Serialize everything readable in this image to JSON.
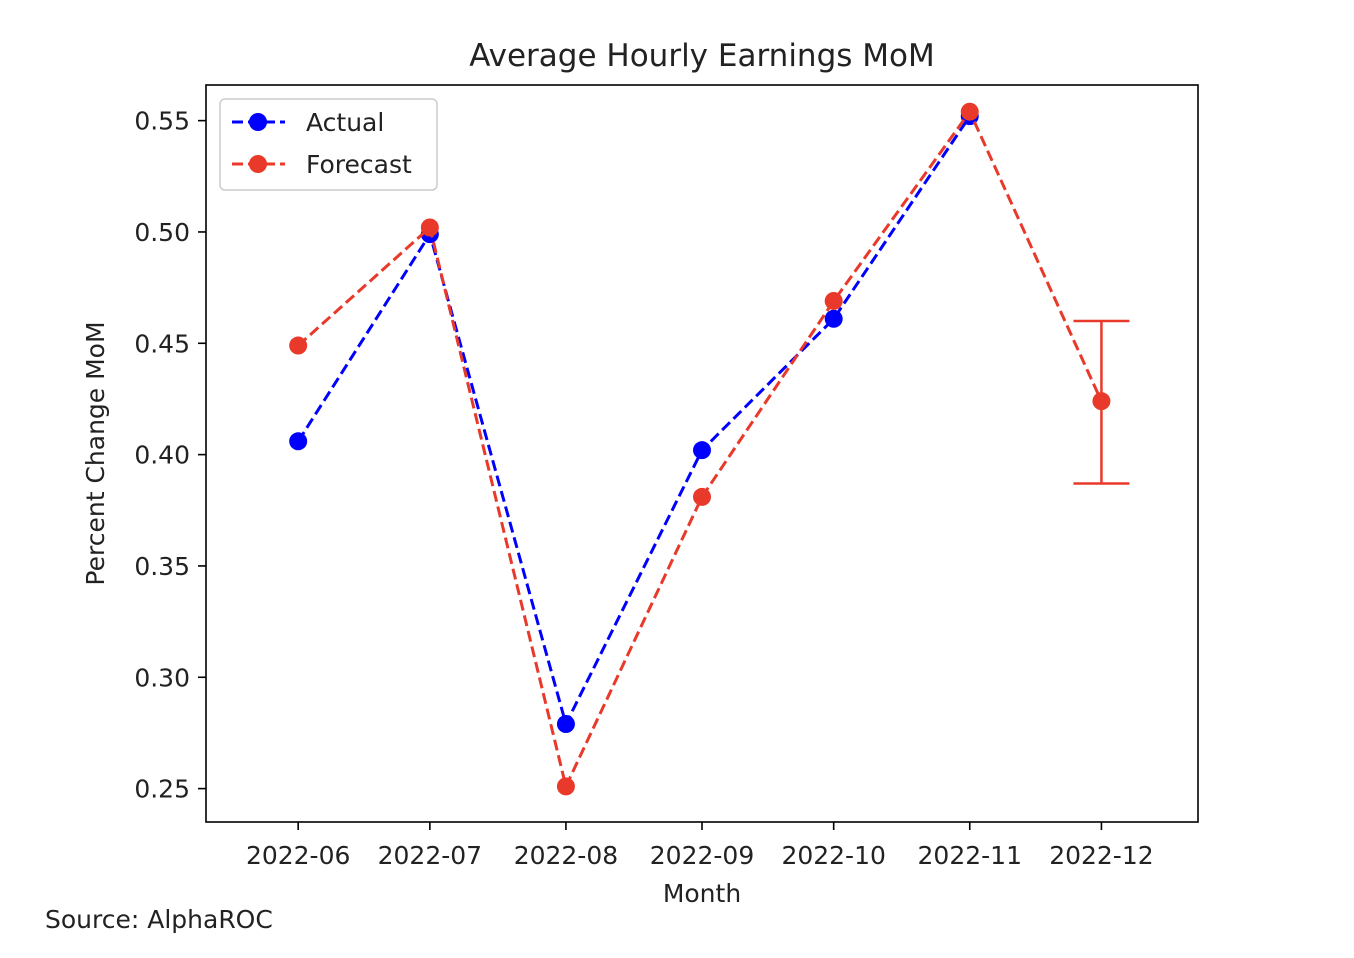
{
  "chart_data": {
    "type": "line",
    "title": "Average Hourly Earnings MoM",
    "xlabel": "Month",
    "ylabel": "Percent Change MoM",
    "source": "Source: AlphaROC",
    "categories": [
      "2022-06",
      "2022-07",
      "2022-08",
      "2022-09",
      "2022-10",
      "2022-11",
      "2022-12"
    ],
    "x_dates": [
      "2022-06-01",
      "2022-07-01",
      "2022-08-01",
      "2022-09-01",
      "2022-10-01",
      "2022-11-01",
      "2022-12-01"
    ],
    "xlim": [
      "2022-05-11",
      "2022-12-23"
    ],
    "ylim": [
      0.235,
      0.566
    ],
    "yticks": [
      0.25,
      0.3,
      0.35,
      0.4,
      0.45,
      0.5,
      0.55
    ],
    "ytick_labels": [
      "0.25",
      "0.30",
      "0.35",
      "0.40",
      "0.45",
      "0.50",
      "0.55"
    ],
    "grid": false,
    "legend_position": "upper-left",
    "series": [
      {
        "name": "Actual",
        "color": "#0000ff",
        "line_style": "dashed",
        "marker": "circle",
        "x": [
          "2022-06-01",
          "2022-07-01",
          "2022-08-01",
          "2022-09-01",
          "2022-10-01",
          "2022-11-01"
        ],
        "values": [
          0.406,
          0.499,
          0.279,
          0.402,
          0.461,
          0.552
        ]
      },
      {
        "name": "Forecast",
        "color": "#e8392a",
        "line_style": "dashed",
        "marker": "circle",
        "x": [
          "2022-06-01",
          "2022-07-01",
          "2022-08-01",
          "2022-09-01",
          "2022-10-01",
          "2022-11-01",
          "2022-12-01"
        ],
        "values": [
          0.449,
          0.502,
          0.251,
          0.381,
          0.469,
          0.554,
          0.424
        ]
      }
    ],
    "error_bar": {
      "series": "Forecast",
      "x": "2022-12-01",
      "value": 0.424,
      "lower": 0.387,
      "upper": 0.46,
      "color": "#e8392a"
    }
  }
}
